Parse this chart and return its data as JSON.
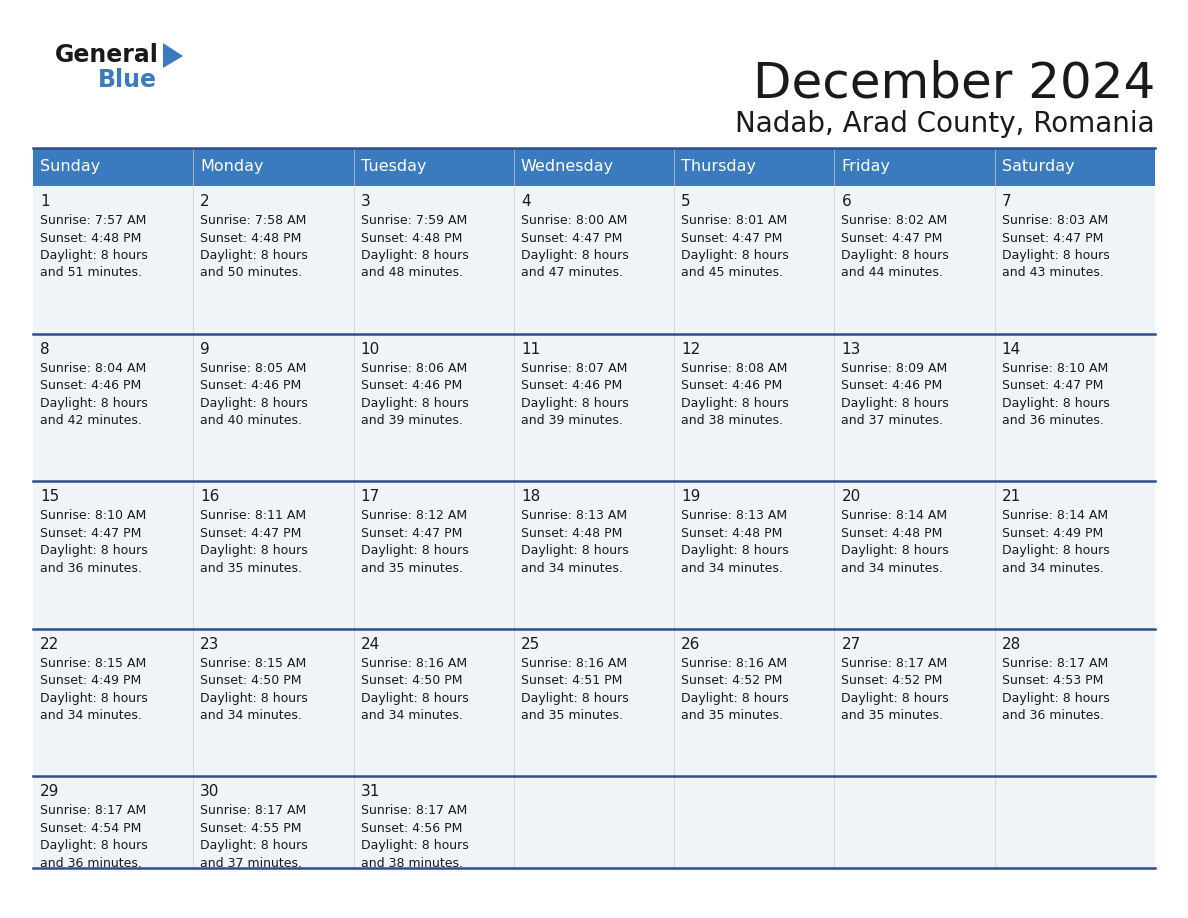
{
  "title": "December 2024",
  "subtitle": "Nadab, Arad County, Romania",
  "header_color": "#3a7bbf",
  "header_text_color": "#ffffff",
  "bg_color": "#ffffff",
  "row_bg_odd": "#f0f4f8",
  "row_bg_even": "#ffffff",
  "separator_color": "#2e4f8a",
  "days_of_week": [
    "Sunday",
    "Monday",
    "Tuesday",
    "Wednesday",
    "Thursday",
    "Friday",
    "Saturday"
  ],
  "cell_data": [
    [
      "1\nSunrise: 7:57 AM\nSunset: 4:48 PM\nDaylight: 8 hours\nand 51 minutes.",
      "2\nSunrise: 7:58 AM\nSunset: 4:48 PM\nDaylight: 8 hours\nand 50 minutes.",
      "3\nSunrise: 7:59 AM\nSunset: 4:48 PM\nDaylight: 8 hours\nand 48 minutes.",
      "4\nSunrise: 8:00 AM\nSunset: 4:47 PM\nDaylight: 8 hours\nand 47 minutes.",
      "5\nSunrise: 8:01 AM\nSunset: 4:47 PM\nDaylight: 8 hours\nand 45 minutes.",
      "6\nSunrise: 8:02 AM\nSunset: 4:47 PM\nDaylight: 8 hours\nand 44 minutes.",
      "7\nSunrise: 8:03 AM\nSunset: 4:47 PM\nDaylight: 8 hours\nand 43 minutes."
    ],
    [
      "8\nSunrise: 8:04 AM\nSunset: 4:46 PM\nDaylight: 8 hours\nand 42 minutes.",
      "9\nSunrise: 8:05 AM\nSunset: 4:46 PM\nDaylight: 8 hours\nand 40 minutes.",
      "10\nSunrise: 8:06 AM\nSunset: 4:46 PM\nDaylight: 8 hours\nand 39 minutes.",
      "11\nSunrise: 8:07 AM\nSunset: 4:46 PM\nDaylight: 8 hours\nand 39 minutes.",
      "12\nSunrise: 8:08 AM\nSunset: 4:46 PM\nDaylight: 8 hours\nand 38 minutes.",
      "13\nSunrise: 8:09 AM\nSunset: 4:46 PM\nDaylight: 8 hours\nand 37 minutes.",
      "14\nSunrise: 8:10 AM\nSunset: 4:47 PM\nDaylight: 8 hours\nand 36 minutes."
    ],
    [
      "15\nSunrise: 8:10 AM\nSunset: 4:47 PM\nDaylight: 8 hours\nand 36 minutes.",
      "16\nSunrise: 8:11 AM\nSunset: 4:47 PM\nDaylight: 8 hours\nand 35 minutes.",
      "17\nSunrise: 8:12 AM\nSunset: 4:47 PM\nDaylight: 8 hours\nand 35 minutes.",
      "18\nSunrise: 8:13 AM\nSunset: 4:48 PM\nDaylight: 8 hours\nand 34 minutes.",
      "19\nSunrise: 8:13 AM\nSunset: 4:48 PM\nDaylight: 8 hours\nand 34 minutes.",
      "20\nSunrise: 8:14 AM\nSunset: 4:48 PM\nDaylight: 8 hours\nand 34 minutes.",
      "21\nSunrise: 8:14 AM\nSunset: 4:49 PM\nDaylight: 8 hours\nand 34 minutes."
    ],
    [
      "22\nSunrise: 8:15 AM\nSunset: 4:49 PM\nDaylight: 8 hours\nand 34 minutes.",
      "23\nSunrise: 8:15 AM\nSunset: 4:50 PM\nDaylight: 8 hours\nand 34 minutes.",
      "24\nSunrise: 8:16 AM\nSunset: 4:50 PM\nDaylight: 8 hours\nand 34 minutes.",
      "25\nSunrise: 8:16 AM\nSunset: 4:51 PM\nDaylight: 8 hours\nand 35 minutes.",
      "26\nSunrise: 8:16 AM\nSunset: 4:52 PM\nDaylight: 8 hours\nand 35 minutes.",
      "27\nSunrise: 8:17 AM\nSunset: 4:52 PM\nDaylight: 8 hours\nand 35 minutes.",
      "28\nSunrise: 8:17 AM\nSunset: 4:53 PM\nDaylight: 8 hours\nand 36 minutes."
    ],
    [
      "29\nSunrise: 8:17 AM\nSunset: 4:54 PM\nDaylight: 8 hours\nand 36 minutes.",
      "30\nSunrise: 8:17 AM\nSunset: 4:55 PM\nDaylight: 8 hours\nand 37 minutes.",
      "31\nSunrise: 8:17 AM\nSunset: 4:56 PM\nDaylight: 8 hours\nand 38 minutes.",
      "",
      "",
      "",
      ""
    ]
  ]
}
